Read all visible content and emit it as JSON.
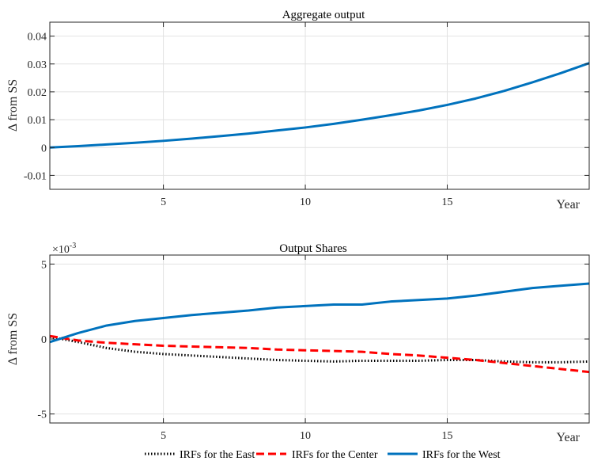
{
  "chart_data": [
    {
      "type": "line",
      "title": "Aggregate output",
      "xlabel": "Year",
      "ylabel": "Δ from SS",
      "xlim": [
        1,
        20
      ],
      "ylim": [
        -0.015,
        0.045
      ],
      "xticks": [
        5,
        10,
        15
      ],
      "xtick_labels": [
        "5",
        "10",
        "15"
      ],
      "yticks": [
        -0.01,
        0,
        0.01,
        0.02,
        0.03,
        0.04
      ],
      "ytick_labels": [
        "-0.01",
        "0",
        "0.01",
        "0.02",
        "0.03",
        "0.04"
      ],
      "grid": true,
      "series": [
        {
          "color": "#0072BD",
          "style": "solid",
          "x": [
            1,
            2,
            3,
            4,
            5,
            6,
            7,
            8,
            9,
            10,
            11,
            12,
            13,
            14,
            15,
            16,
            17,
            18,
            19,
            20
          ],
          "y": [
            0.0,
            0.0005,
            0.0011,
            0.0017,
            0.0024,
            0.0032,
            0.0041,
            0.005,
            0.0061,
            0.0072,
            0.0085,
            0.01,
            0.0116,
            0.0133,
            0.0153,
            0.0176,
            0.0203,
            0.0234,
            0.0267,
            0.0303
          ]
        }
      ]
    },
    {
      "type": "line",
      "title": "Output Shares",
      "xlabel": "Year",
      "ylabel": "Δ from SS",
      "scale_label": "×10",
      "scale_exponent": "-3",
      "xlim": [
        1,
        20
      ],
      "ylim": [
        -5.6,
        5.6
      ],
      "xticks": [
        5,
        10,
        15
      ],
      "xtick_labels": [
        "5",
        "10",
        "15"
      ],
      "yticks": [
        -5,
        0,
        5
      ],
      "ytick_labels": [
        "-5",
        "0",
        "5"
      ],
      "grid": true,
      "legend_position": "bottom",
      "series": [
        {
          "name": "IRFs for the East",
          "color": "#000000",
          "style": "dotted",
          "x": [
            1,
            2,
            3,
            4,
            5,
            6,
            7,
            8,
            9,
            10,
            11,
            12,
            13,
            14,
            15,
            16,
            17,
            18,
            19,
            20
          ],
          "y": [
            0.15,
            -0.2,
            -0.6,
            -0.85,
            -1.0,
            -1.1,
            -1.2,
            -1.3,
            -1.4,
            -1.45,
            -1.5,
            -1.45,
            -1.45,
            -1.45,
            -1.4,
            -1.4,
            -1.5,
            -1.55,
            -1.55,
            -1.5
          ]
        },
        {
          "name": "IRFs for the Center",
          "color": "#FF0000",
          "style": "dashed",
          "x": [
            1,
            2,
            3,
            4,
            5,
            6,
            7,
            8,
            9,
            10,
            11,
            12,
            13,
            14,
            15,
            16,
            17,
            18,
            19,
            20
          ],
          "y": [
            0.2,
            -0.1,
            -0.25,
            -0.35,
            -0.45,
            -0.5,
            -0.55,
            -0.6,
            -0.7,
            -0.75,
            -0.8,
            -0.85,
            -1.0,
            -1.1,
            -1.25,
            -1.4,
            -1.6,
            -1.8,
            -2.0,
            -2.2
          ]
        },
        {
          "name": "IRFs for the West",
          "color": "#0072BD",
          "style": "solid",
          "x": [
            1,
            2,
            3,
            4,
            5,
            6,
            7,
            8,
            9,
            10,
            11,
            12,
            13,
            14,
            15,
            16,
            17,
            18,
            19,
            20
          ],
          "y": [
            -0.2,
            0.4,
            0.9,
            1.2,
            1.4,
            1.6,
            1.75,
            1.9,
            2.1,
            2.2,
            2.3,
            2.3,
            2.5,
            2.6,
            2.7,
            2.9,
            3.15,
            3.4,
            3.55,
            3.7
          ]
        }
      ]
    }
  ]
}
